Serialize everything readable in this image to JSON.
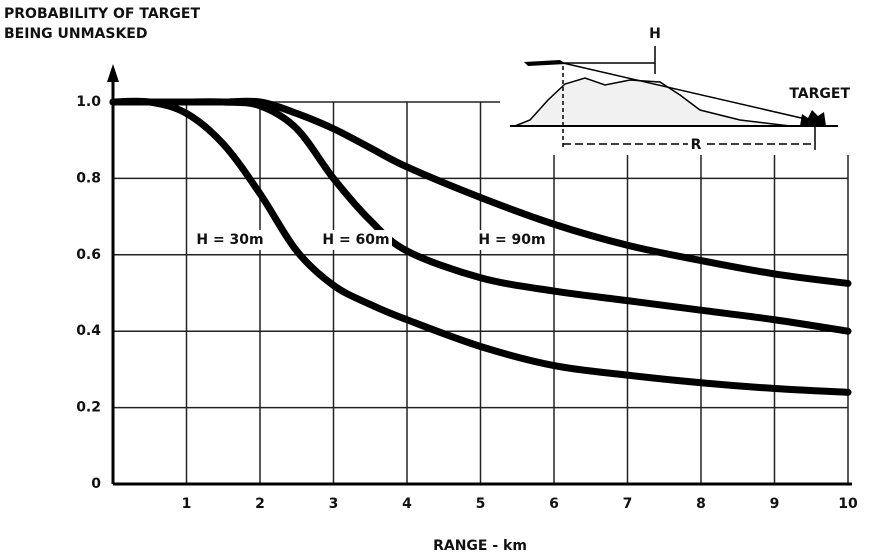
{
  "chart_data": {
    "type": "line",
    "ylabel": [
      "PROBABILITY OF TARGET",
      "BEING UNMASKED"
    ],
    "xlabel": "RANGE - km",
    "x": [
      0,
      0.5,
      1,
      1.5,
      2,
      2.5,
      3,
      3.5,
      4,
      5,
      6,
      7,
      8,
      9,
      10
    ],
    "series": [
      {
        "name": "H = 30m",
        "color": "#000000",
        "values": [
          1,
          1,
          0.97,
          0.89,
          0.76,
          0.61,
          0.52,
          0.47,
          0.43,
          0.36,
          0.31,
          0.285,
          0.265,
          0.25,
          0.24
        ]
      },
      {
        "name": "H = 60m",
        "color": "#000000",
        "values": [
          1,
          1,
          1,
          1,
          0.99,
          0.93,
          0.8,
          0.69,
          0.61,
          0.54,
          0.505,
          0.48,
          0.455,
          0.43,
          0.4
        ]
      },
      {
        "name": "H = 90m",
        "color": "#000000",
        "values": [
          1,
          1,
          1,
          1,
          1,
          0.97,
          0.93,
          0.88,
          0.83,
          0.75,
          0.68,
          0.625,
          0.585,
          0.55,
          0.525
        ]
      }
    ],
    "xlim": [
      0,
      10
    ],
    "xticks": [
      1,
      2,
      3,
      4,
      5,
      6,
      7,
      8,
      9,
      10
    ],
    "ylim": [
      0,
      1
    ],
    "yticks": [
      0,
      0.2,
      0.4,
      0.6,
      0.8,
      {
        "value": 1,
        "label": "1.0"
      }
    ],
    "grid": true,
    "annotations": [
      "H",
      "TARGET",
      "R"
    ]
  }
}
